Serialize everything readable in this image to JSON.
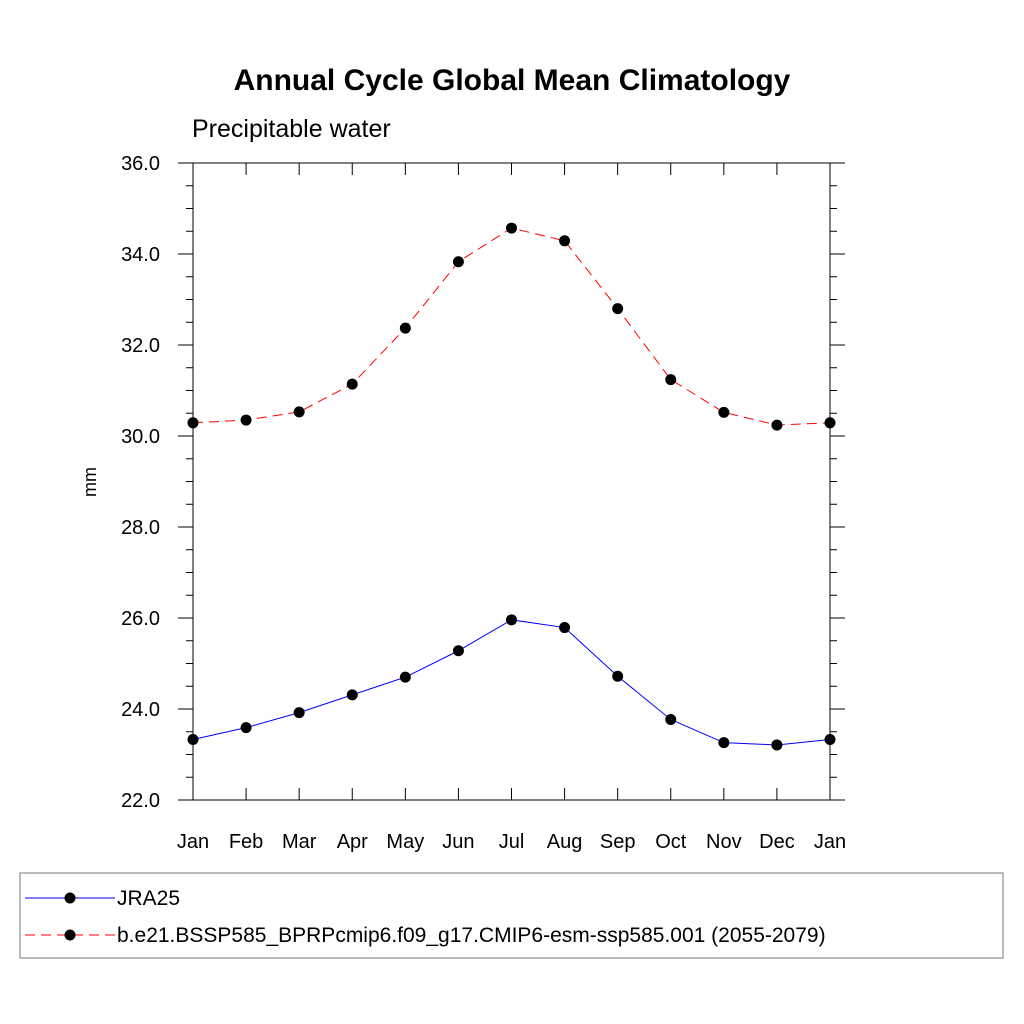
{
  "chart_data": {
    "type": "line",
    "title": "Annual Cycle Global Mean Climatology",
    "subtitle": "Precipitable water",
    "xlabel": "",
    "ylabel": "mm",
    "categories": [
      "Jan",
      "Feb",
      "Mar",
      "Apr",
      "May",
      "Jun",
      "Jul",
      "Aug",
      "Sep",
      "Oct",
      "Nov",
      "Dec",
      "Jan"
    ],
    "ylim": [
      22.0,
      36.0
    ],
    "yticks": [
      "22.0",
      "24.0",
      "26.0",
      "28.0",
      "30.0",
      "32.0",
      "34.0",
      "36.0"
    ],
    "grid": false,
    "legend_position": "bottom",
    "series": [
      {
        "name": "JRA25",
        "color": "#0000ff",
        "line_style": "solid",
        "marker": "filled-circle",
        "values": [
          23.33,
          23.59,
          23.92,
          24.31,
          24.7,
          25.28,
          25.96,
          25.79,
          24.72,
          23.77,
          23.26,
          23.21,
          23.33
        ]
      },
      {
        "name": "b.e21.BSSP585_BPRPcmip6.f09_g17.CMIP6-esm-ssp585.001 (2055-2079)",
        "color": "#ff0000",
        "line_style": "dashed",
        "marker": "filled-circle",
        "values": [
          30.29,
          30.35,
          30.53,
          31.14,
          32.37,
          33.83,
          34.57,
          34.29,
          32.8,
          31.24,
          30.52,
          30.24,
          30.29
        ]
      }
    ]
  }
}
